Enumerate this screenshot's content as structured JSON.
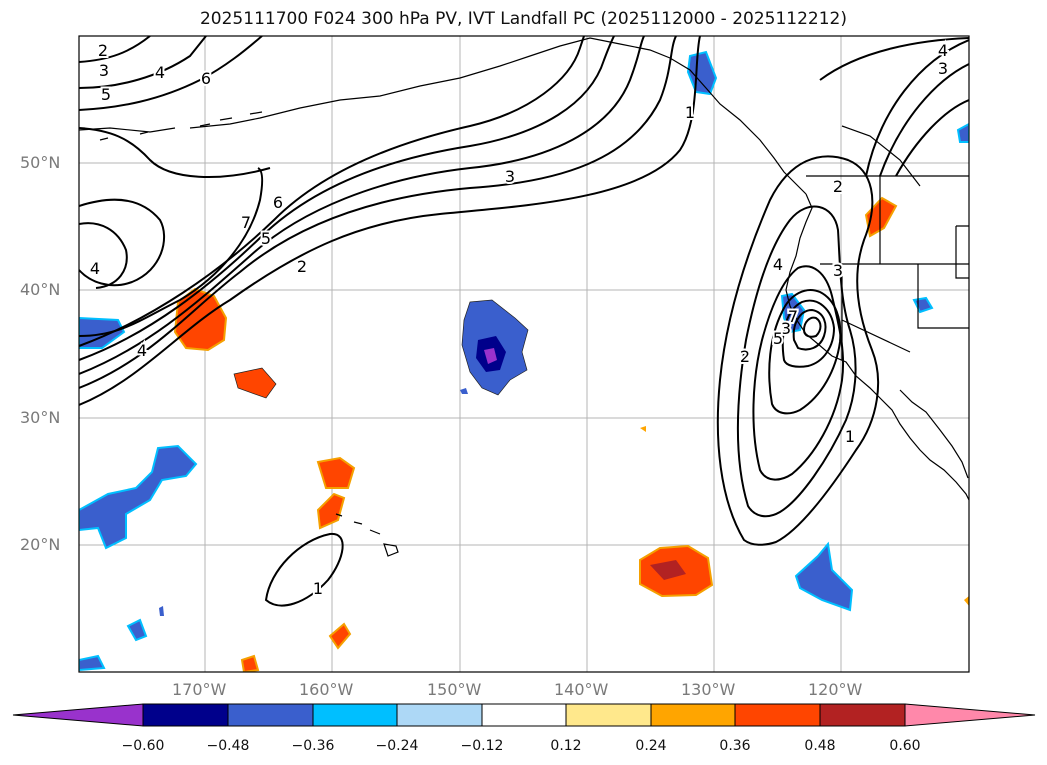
{
  "title": "2025111700 F024 300 hPa PV, IVT Landfall PC (2025112000 - 2025112212)",
  "lat_labels": [
    "50°N",
    "40°N",
    "30°N",
    "20°N"
  ],
  "lon_labels": [
    "170°W",
    "160°W",
    "150°W",
    "140°W",
    "130°W",
    "120°W"
  ],
  "colorbar": {
    "ticks": [
      "−0.60",
      "−0.48",
      "−0.36",
      "−0.24",
      "−0.12",
      "0.12",
      "0.24",
      "0.36",
      "0.48",
      "0.60"
    ],
    "colors": [
      "#9932cc",
      "#00008b",
      "#3a5fcd",
      "#00bfff",
      "#add8f6",
      "#ffffff",
      "#ffe88c",
      "#ffa500",
      "#ff4500",
      "#b22222",
      "#ff88aa"
    ]
  },
  "contour_labels": [
    "2",
    "3",
    "4",
    "5",
    "6",
    "7",
    "3",
    "2",
    "4",
    "1",
    "4",
    "3",
    "4",
    "2",
    "3",
    "7",
    "6",
    "5",
    "2",
    "1",
    "1",
    "4",
    "3",
    "5"
  ]
}
